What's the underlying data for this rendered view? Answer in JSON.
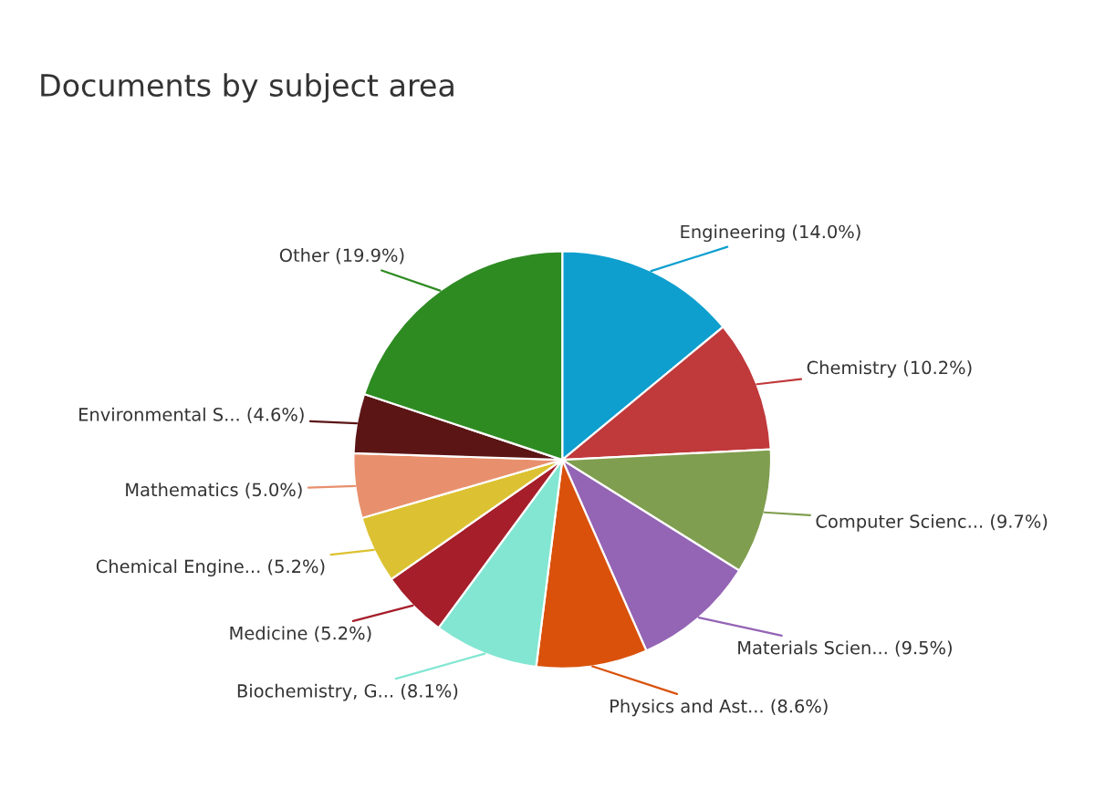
{
  "chart_data": {
    "type": "pie",
    "title": "Documents by subject area",
    "categories": [
      "Engineering",
      "Chemistry",
      "Computer Scienc...",
      "Materials Scien...",
      "Physics and Ast...",
      "Biochemistry, G...",
      "Medicine",
      "Chemical Engine...",
      "Mathematics",
      "Environmental S...",
      "Other"
    ],
    "values": [
      14.0,
      10.2,
      9.7,
      9.5,
      8.6,
      8.1,
      5.2,
      5.2,
      5.0,
      4.6,
      19.9
    ],
    "value_labels": [
      "(14.0%)",
      "(10.2%)",
      "(9.7%)",
      "(9.5%)",
      "(8.6%)",
      "(8.1%)",
      "(5.2%)",
      "(5.2%)",
      "(5.0%)",
      "(4.6%)",
      "(19.9%)"
    ],
    "colors": [
      "#0e9fcf",
      "#c0393b",
      "#7f9e4f",
      "#9464b5",
      "#d9510b",
      "#82e6d2",
      "#a51e2a",
      "#dcc232",
      "#e8906d",
      "#5c1515",
      "#2e8b22"
    ],
    "legend": false
  }
}
